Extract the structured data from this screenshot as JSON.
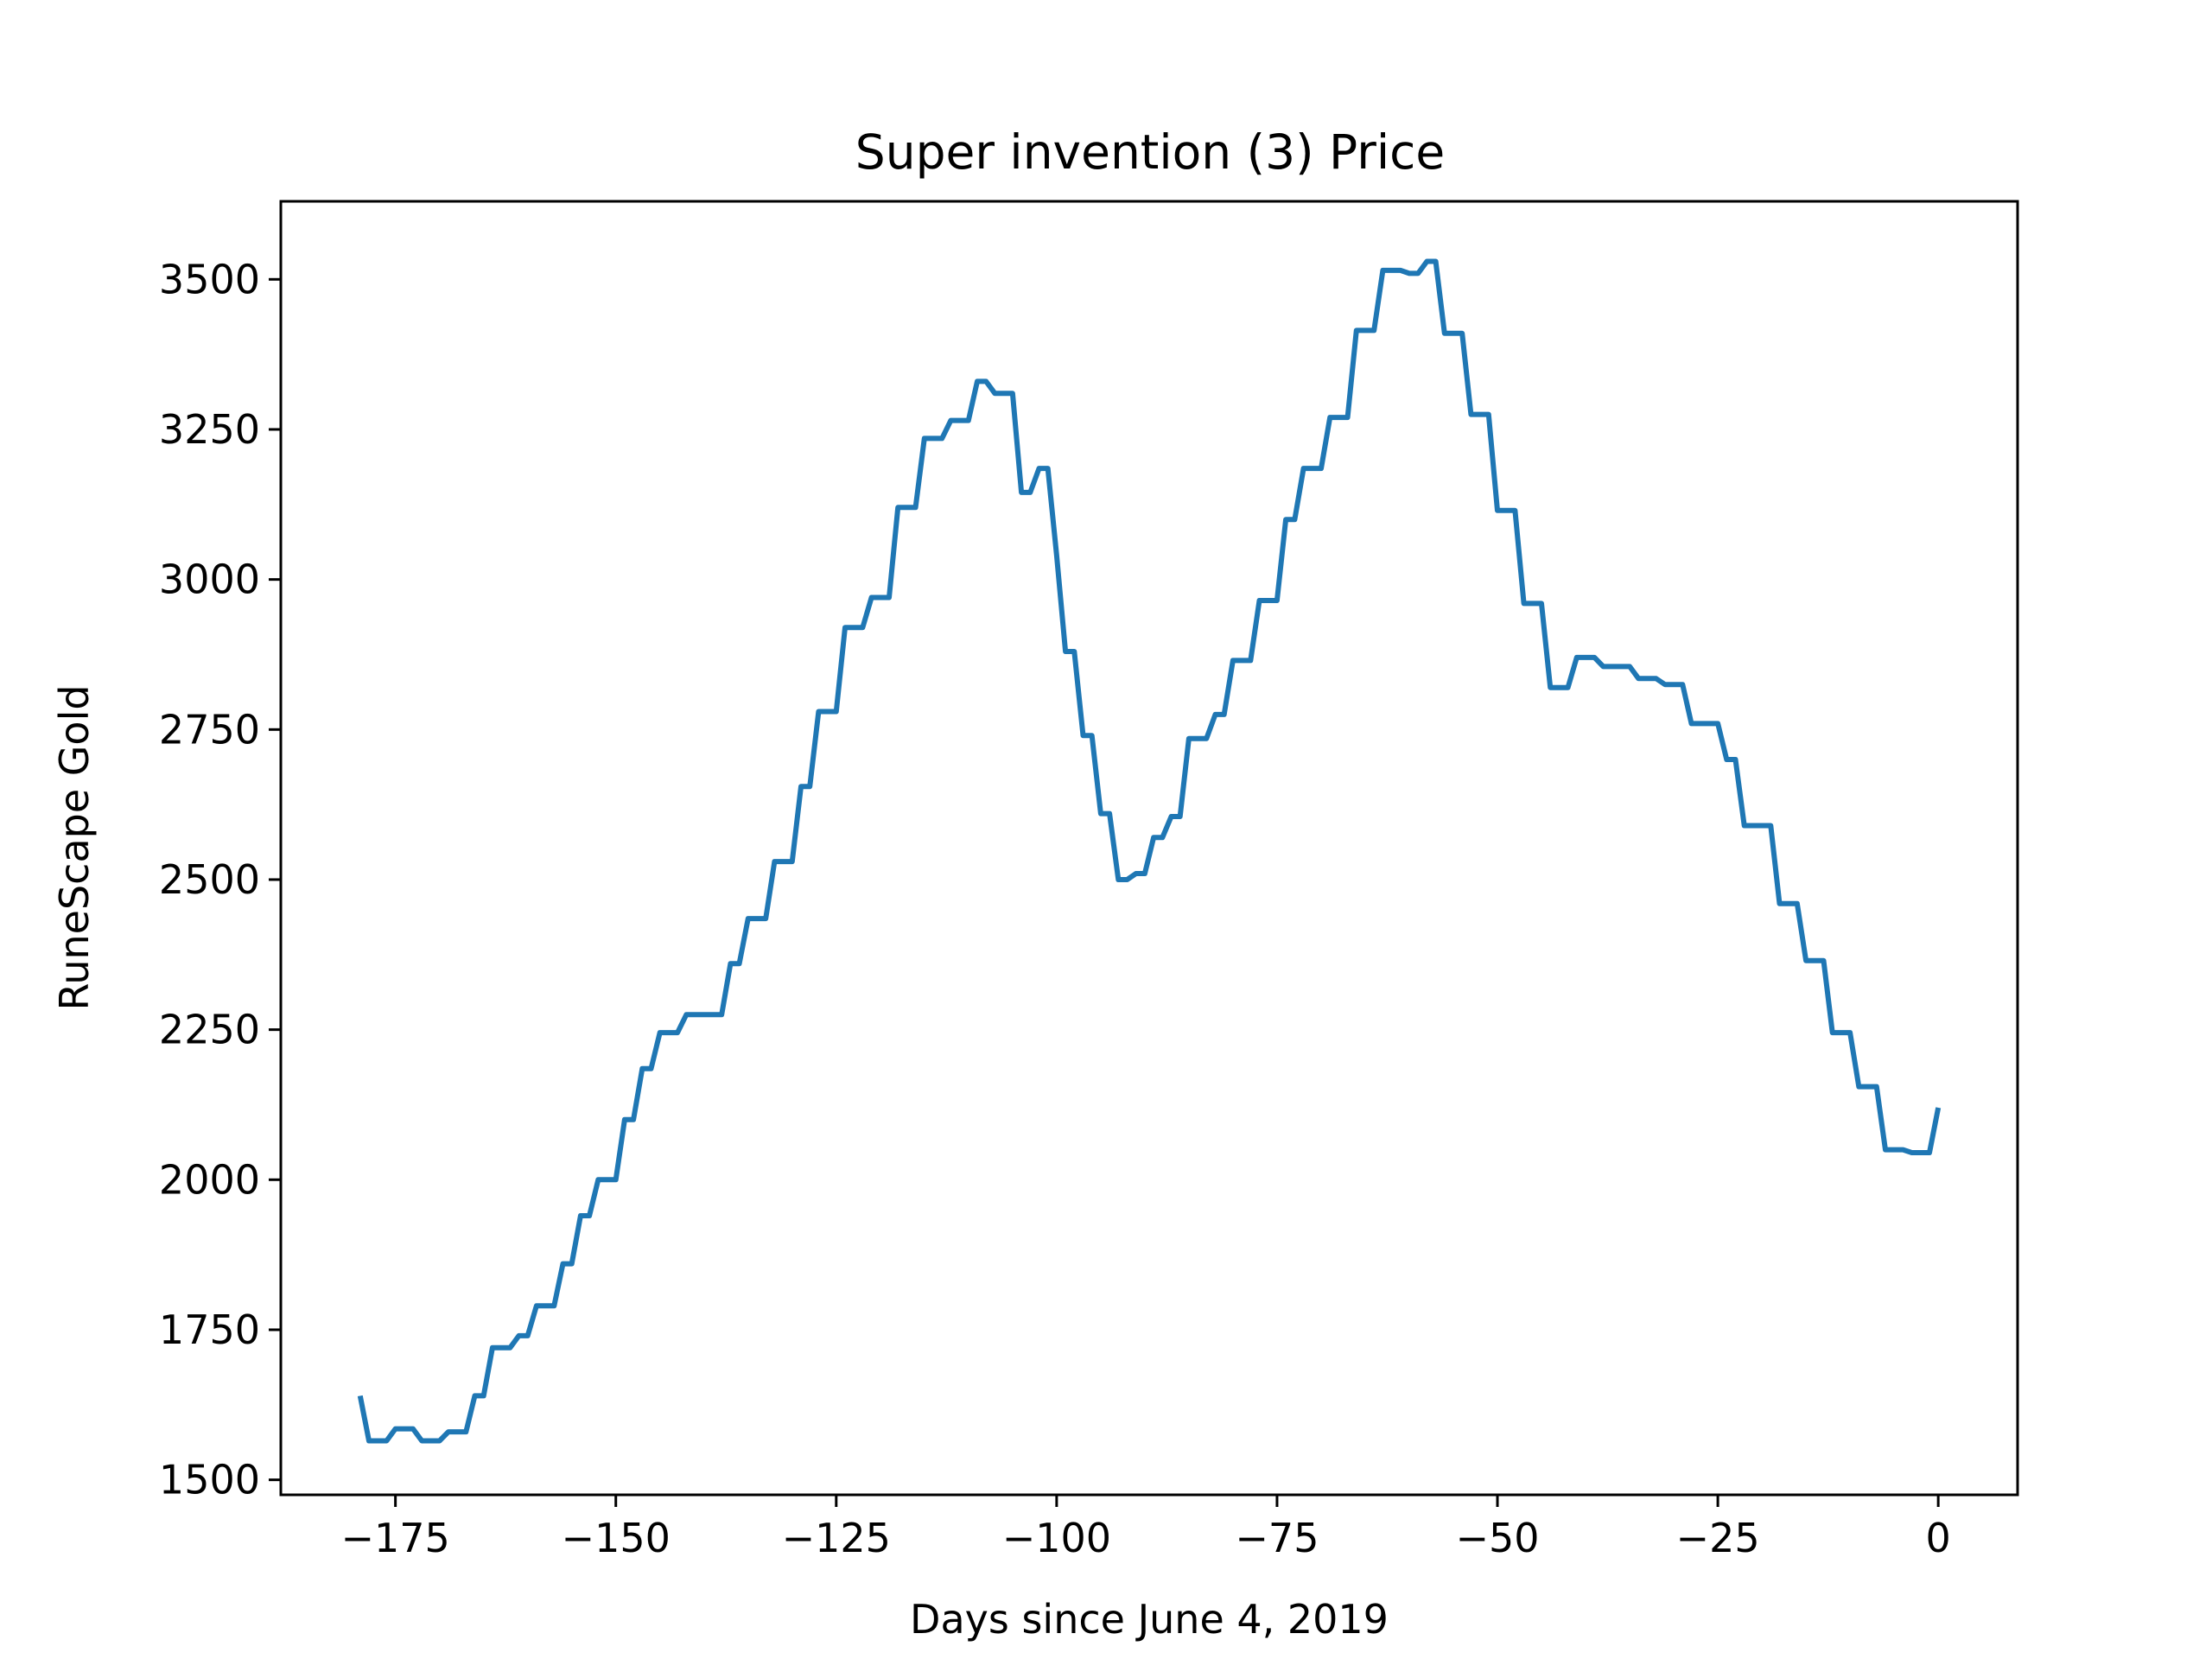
{
  "chart_data": {
    "type": "line",
    "title": "Super invention (3) Price",
    "xlabel": "Days since June 4, 2019",
    "ylabel": "RuneScape Gold",
    "xlim": [
      -188,
      9
    ],
    "ylim": [
      1475,
      3630
    ],
    "grid": false,
    "legend": "none",
    "xticks": [
      -175,
      -150,
      -125,
      -100,
      -75,
      -50,
      -25,
      0
    ],
    "xtick_labels": [
      "−175",
      "−150",
      "−125",
      "−100",
      "−75",
      "−50",
      "−25",
      "0"
    ],
    "yticks": [
      1500,
      1750,
      2000,
      2250,
      2500,
      2750,
      3000,
      3250,
      3500
    ],
    "ytick_labels": [
      "1500",
      "1750",
      "2000",
      "2250",
      "2500",
      "2750",
      "3000",
      "3250",
      "3500"
    ],
    "series": [
      {
        "color": "#1f77b4",
        "x": [
          -179,
          -178,
          -177,
          -176,
          -175,
          -174,
          -173,
          -172,
          -171,
          -170,
          -169,
          -168,
          -167,
          -166,
          -165,
          -164,
          -163,
          -162,
          -161,
          -160,
          -159,
          -158,
          -157,
          -156,
          -155,
          -154,
          -153,
          -152,
          -151,
          -150,
          -149,
          -148,
          -147,
          -146,
          -145,
          -144,
          -143,
          -142,
          -141,
          -140,
          -139,
          -138,
          -137,
          -136,
          -135,
          -134,
          -133,
          -132,
          -131,
          -130,
          -129,
          -128,
          -127,
          -126,
          -125,
          -124,
          -123,
          -122,
          -121,
          -120,
          -119,
          -118,
          -117,
          -116,
          -115,
          -114,
          -113,
          -112,
          -111,
          -110,
          -109,
          -108,
          -107,
          -106,
          -105,
          -104,
          -103,
          -102,
          -101,
          -100,
          -99,
          -98,
          -97,
          -96,
          -95,
          -94,
          -93,
          -92,
          -91,
          -90,
          -89,
          -88,
          -87,
          -86,
          -85,
          -84,
          -83,
          -82,
          -81,
          -80,
          -79,
          -78,
          -77,
          -76,
          -75,
          -74,
          -73,
          -72,
          -71,
          -70,
          -69,
          -68,
          -67,
          -66,
          -65,
          -64,
          -63,
          -62,
          -61,
          -60,
          -59,
          -58,
          -57,
          -56,
          -55,
          -54,
          -53,
          -52,
          -51,
          -50,
          -49,
          -48,
          -47,
          -46,
          -45,
          -44,
          -43,
          -42,
          -41,
          -40,
          -39,
          -38,
          -37,
          -36,
          -35,
          -34,
          -33,
          -32,
          -31,
          -30,
          -29,
          -28,
          -27,
          -26,
          -25,
          -24,
          -23,
          -22,
          -21,
          -20,
          -19,
          -18,
          -17,
          -16,
          -15,
          -14,
          -13,
          -12,
          -11,
          -10,
          -9,
          -8,
          -7,
          -6,
          -5,
          -4,
          -3,
          -2,
          -1,
          0
        ],
        "y": [
          1640,
          1565,
          1565,
          1565,
          1585,
          1585,
          1585,
          1565,
          1565,
          1565,
          1580,
          1580,
          1580,
          1640,
          1640,
          1720,
          1720,
          1720,
          1740,
          1740,
          1790,
          1790,
          1790,
          1860,
          1860,
          1940,
          1940,
          2000,
          2000,
          2000,
          2100,
          2100,
          2185,
          2185,
          2245,
          2245,
          2245,
          2275,
          2275,
          2275,
          2275,
          2275,
          2360,
          2360,
          2435,
          2435,
          2435,
          2530,
          2530,
          2530,
          2655,
          2655,
          2780,
          2780,
          2780,
          2920,
          2920,
          2920,
          2970,
          2970,
          2970,
          3120,
          3120,
          3120,
          3235,
          3235,
          3235,
          3265,
          3265,
          3265,
          3330,
          3330,
          3310,
          3310,
          3310,
          3145,
          3145,
          3185,
          3185,
          3040,
          2880,
          2880,
          2740,
          2740,
          2610,
          2610,
          2500,
          2500,
          2510,
          2510,
          2570,
          2570,
          2605,
          2605,
          2735,
          2735,
          2735,
          2775,
          2775,
          2865,
          2865,
          2865,
          2965,
          2965,
          2965,
          3100,
          3100,
          3185,
          3185,
          3185,
          3270,
          3270,
          3270,
          3415,
          3415,
          3415,
          3515,
          3515,
          3515,
          3510,
          3510,
          3530,
          3530,
          3410,
          3410,
          3410,
          3275,
          3275,
          3275,
          3115,
          3115,
          3115,
          2960,
          2960,
          2960,
          2820,
          2820,
          2820,
          2870,
          2870,
          2870,
          2855,
          2855,
          2855,
          2855,
          2835,
          2835,
          2835,
          2825,
          2825,
          2825,
          2760,
          2760,
          2760,
          2760,
          2700,
          2700,
          2590,
          2590,
          2590,
          2590,
          2460,
          2460,
          2460,
          2365,
          2365,
          2365,
          2245,
          2245,
          2245,
          2155,
          2155,
          2155,
          2050,
          2050,
          2050,
          2045,
          2045,
          2045,
          2120
        ]
      }
    ]
  }
}
